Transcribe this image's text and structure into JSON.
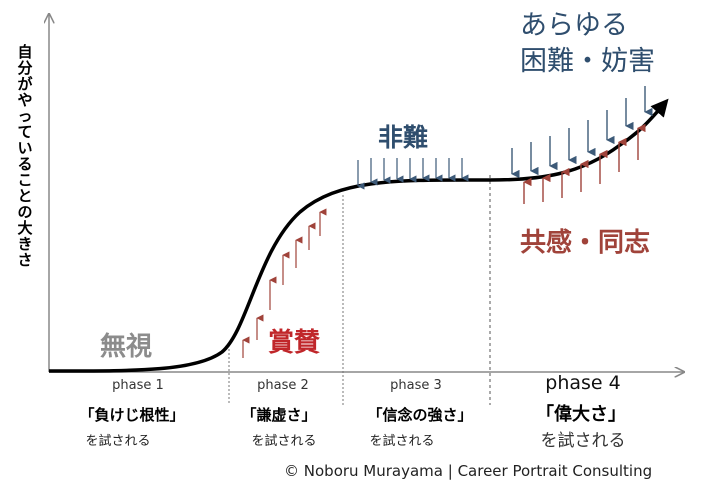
{
  "y_axis_label": "自分がやっていることの大きさ",
  "forces": {
    "ignored": "無視",
    "praise": "賞賛",
    "criticism": "非難",
    "empathy": "共感・同志",
    "obstacles_line1": "あらゆる",
    "obstacles_line2": "困難・妨害"
  },
  "phases": [
    {
      "name": "phase 1",
      "quality": "「負けじ根性」",
      "tested": "を試される"
    },
    {
      "name": "phase 2",
      "quality": "「謙虚さ」",
      "tested": "を試される"
    },
    {
      "name": "phase 3",
      "quality": "「信念の強さ」",
      "tested": "を試される"
    },
    {
      "name": "phase 4",
      "quality": "「偉大さ」",
      "tested": "を試される"
    }
  ],
  "credit": "© Noboru Murayama | Career Portrait Consulting",
  "colors": {
    "curve": "#000000",
    "down_arrow": "#3d5a78",
    "up_arrow": "#a0433a",
    "criticism_text": "#2f4e6e",
    "empathy_text": "#a0433a",
    "praise_text": "#c0262a",
    "ignored_text": "#8c8c8c"
  }
}
